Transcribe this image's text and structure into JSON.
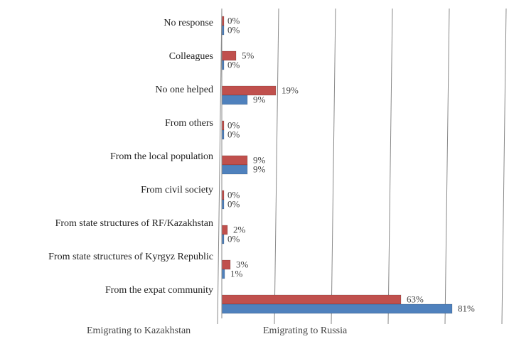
{
  "chart_data": {
    "type": "bar",
    "orientation": "horizontal",
    "categories": [
      "No response",
      "Colleagues",
      "No one helped",
      "From others",
      "From the local population",
      "From civil society",
      "From state structures of RF/Kazakhstan",
      "From state structures of Kyrgyz Republic",
      "From the expat community"
    ],
    "series": [
      {
        "name": "Emigrating to Kazakhstan",
        "color": "#4f81bd",
        "values": [
          0,
          0,
          9,
          0,
          9,
          0,
          0,
          1,
          81
        ],
        "value_labels": [
          "0%",
          "0%",
          "9%",
          "0%",
          "9%",
          "0%",
          "0%",
          "1%",
          "81%"
        ]
      },
      {
        "name": "Emigrating to Russia",
        "color": "#c0504d",
        "values": [
          0,
          5,
          19,
          0,
          9,
          0,
          2,
          3,
          63
        ],
        "value_labels": [
          "0%",
          "5%",
          "19%",
          "0%",
          "9%",
          "0%",
          "2%",
          "3%",
          "63%"
        ]
      }
    ],
    "xlim": [
      0,
      100
    ],
    "xticks": [
      0,
      20,
      40,
      60,
      80,
      100
    ],
    "grid": true
  }
}
